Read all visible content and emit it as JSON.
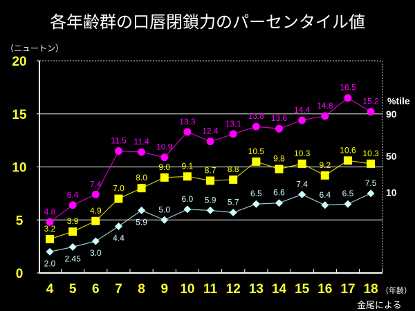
{
  "chart_data": {
    "type": "line",
    "title": "各年齢群の口唇閉鎖力のパーセンタイル値",
    "ylabel": "（ニュートン）",
    "xlabel": "（年齢）",
    "source": "金尾による",
    "legend_title": "%tile",
    "x": [
      "4",
      "5",
      "6",
      "7",
      "8",
      "9",
      "10",
      "11",
      "12",
      "13",
      "14",
      "15",
      "16",
      "17",
      "18"
    ],
    "ylim": [
      0,
      20
    ],
    "yticks": [
      "0",
      "5",
      "10",
      "15",
      "20"
    ],
    "grid": true,
    "series": [
      {
        "name": "90",
        "color": "#ff00ff",
        "marker": "circle",
        "values": [
          4.8,
          6.4,
          7.4,
          11.5,
          11.4,
          10.9,
          13.3,
          12.4,
          13.1,
          13.8,
          13.6,
          14.4,
          14.8,
          16.5,
          15.2
        ],
        "labels": [
          "4.8",
          "6.4",
          "7.4",
          "11.5",
          "11.4",
          "10.9",
          "13.3",
          "12.4",
          "13.1",
          "13.8",
          "13.6",
          "14.4",
          "14.8",
          "16.5",
          "15.2"
        ]
      },
      {
        "name": "50",
        "color": "#ffff00",
        "marker": "square",
        "values": [
          3.2,
          3.9,
          4.9,
          7.0,
          8.0,
          9.0,
          9.1,
          8.7,
          8.8,
          10.5,
          9.8,
          10.3,
          9.2,
          10.6,
          10.3
        ],
        "labels": [
          "3.2",
          "3.9",
          "4.9",
          "7.0",
          "8.0",
          "9.0",
          "9.1",
          "8.7",
          "8.8",
          "10.5",
          "9.8",
          "10.3",
          "9.2",
          "10.6",
          "10.3"
        ]
      },
      {
        "name": "10",
        "color": "#ccffff",
        "marker": "diamond",
        "values": [
          2.0,
          2.45,
          3.0,
          4.4,
          5.9,
          5.0,
          6.0,
          5.9,
          5.7,
          6.5,
          6.6,
          7.4,
          6.4,
          6.5,
          7.5
        ],
        "labels": [
          "2.0",
          "2.45",
          "3.0",
          "4.4",
          "5.9",
          "5.0",
          "6.0",
          "5.9",
          "5.7",
          "6.5",
          "6.6",
          "7.4",
          "6.4",
          "6.5",
          "7.5"
        ]
      }
    ]
  }
}
